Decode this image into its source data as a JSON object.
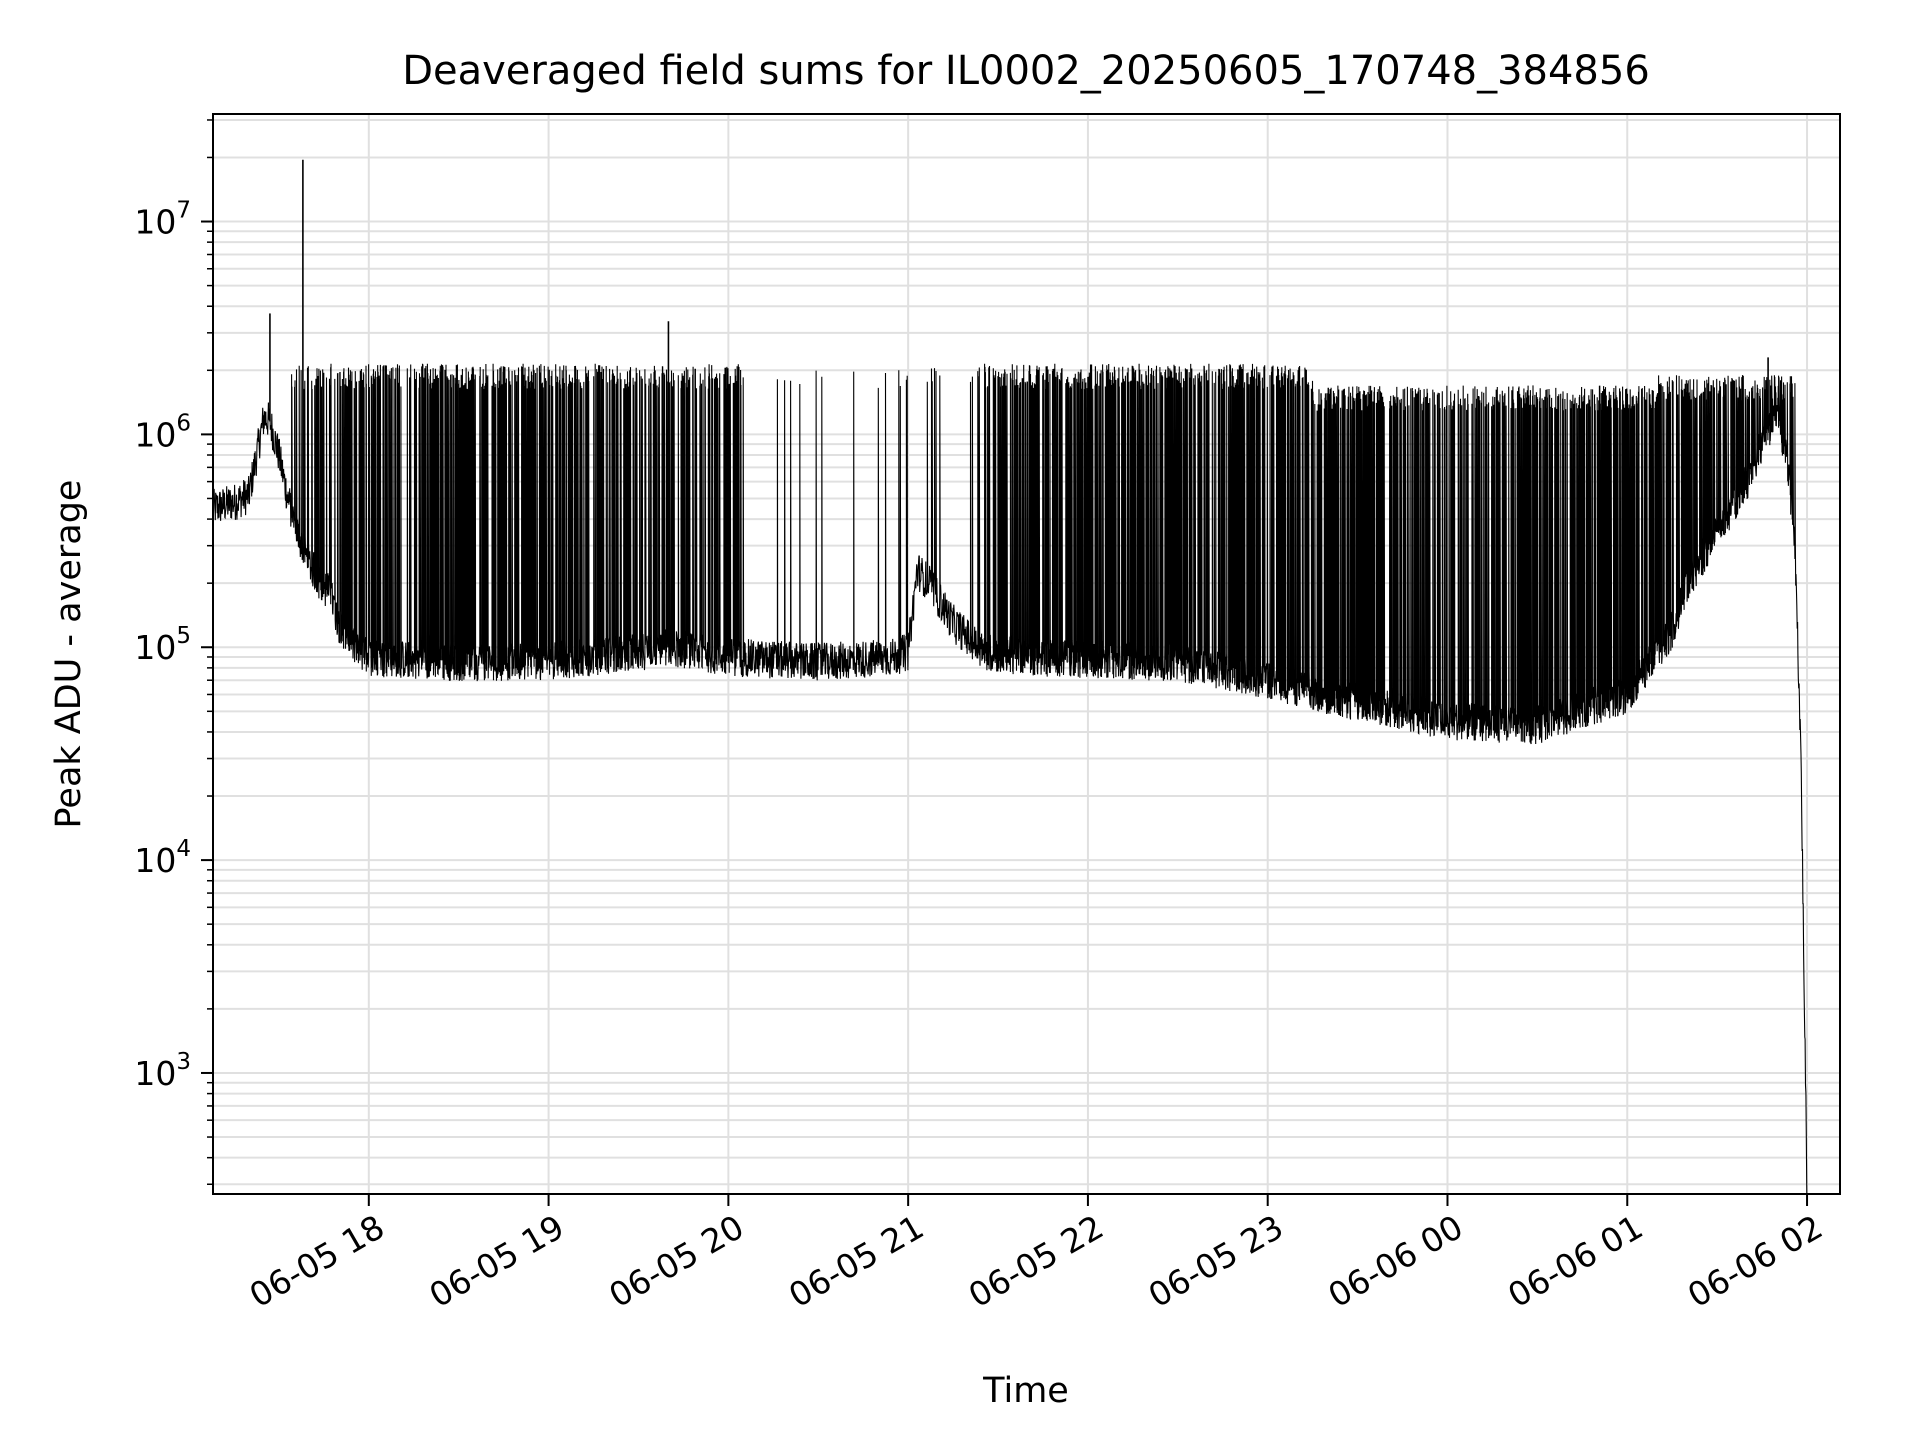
{
  "chart_data": {
    "type": "line",
    "title": "Deaveraged field sums for IL0002_20250605_170748_384856",
    "xlabel": "Time",
    "ylabel": "Peak ADU - average",
    "yscale": "log",
    "ylim": [
      270,
      32000000
    ],
    "xlim": [
      "2025-06-05 17:08",
      "2025-06-06 02:11"
    ],
    "x_ticks": [
      {
        "label": "06-05 18",
        "time": "2025-06-05 18:00"
      },
      {
        "label": "06-05 19",
        "time": "2025-06-05 19:00"
      },
      {
        "label": "06-05 20",
        "time": "2025-06-05 20:00"
      },
      {
        "label": "06-05 21",
        "time": "2025-06-05 21:00"
      },
      {
        "label": "06-05 22",
        "time": "2025-06-05 22:00"
      },
      {
        "label": "06-05 23",
        "time": "2025-06-05 23:00"
      },
      {
        "label": "06-06 00",
        "time": "2025-06-06 00:00"
      },
      {
        "label": "06-06 01",
        "time": "2025-06-06 01:00"
      },
      {
        "label": "06-06 02",
        "time": "2025-06-06 02:00"
      }
    ],
    "y_ticks": [
      {
        "base": "10",
        "exp": "3",
        "value": 1000
      },
      {
        "base": "10",
        "exp": "4",
        "value": 10000
      },
      {
        "base": "10",
        "exp": "5",
        "value": 100000
      },
      {
        "base": "10",
        "exp": "6",
        "value": 1000000
      },
      {
        "base": "10",
        "exp": "7",
        "value": 10000000
      }
    ],
    "grid": true,
    "line_color": "#000000",
    "grid_color": "#e0e0e0",
    "series": [
      {
        "x": [
          "2025-06-05 17:08",
          "2025-06-05 17:15",
          "2025-06-05 17:20",
          "2025-06-05 17:25",
          "2025-06-05 17:27",
          "2025-06-05 17:30",
          "2025-06-05 17:33",
          "2025-06-05 17:36",
          "2025-06-05 17:40",
          "2025-06-05 17:44",
          "2025-06-05 17:47",
          "2025-06-05 17:50",
          "2025-06-05 17:55",
          "2025-06-05 18:00",
          "2025-06-05 18:10",
          "2025-06-05 18:30",
          "2025-06-05 19:00",
          "2025-06-05 19:30",
          "2025-06-05 19:40",
          "2025-06-05 20:00",
          "2025-06-05 20:30",
          "2025-06-05 20:55",
          "2025-06-05 21:00",
          "2025-06-05 21:03",
          "2025-06-05 21:07",
          "2025-06-05 21:15",
          "2025-06-05 21:25",
          "2025-06-05 21:40",
          "2025-06-05 22:00",
          "2025-06-05 22:30",
          "2025-06-05 23:00",
          "2025-06-05 23:30",
          "2025-06-06 00:00",
          "2025-06-06 00:30",
          "2025-06-06 01:00",
          "2025-06-06 01:15",
          "2025-06-06 01:20",
          "2025-06-06 01:30",
          "2025-06-06 01:40",
          "2025-06-06 01:45",
          "2025-06-06 01:50",
          "2025-06-06 01:53",
          "2025-06-06 01:56",
          "2025-06-06 01:58",
          "2025-06-06 02:00"
        ],
        "y": [
          450000,
          480000,
          520000,
          1200000,
          1150000,
          800000,
          500000,
          350000,
          250000,
          200000,
          180000,
          130000,
          100000,
          90000,
          88000,
          85000,
          86000,
          95000,
          100000,
          90000,
          85000,
          90000,
          95000,
          230000,
          200000,
          130000,
          95000,
          90000,
          88000,
          85000,
          70000,
          55000,
          45000,
          43000,
          60000,
          120000,
          200000,
          350000,
          600000,
          900000,
          1300000,
          800000,
          300000,
          30000,
          270
        ]
      }
    ],
    "peaks": [
      {
        "x": "2025-06-05 17:27",
        "y": 3700000
      },
      {
        "x": "2025-06-05 17:38",
        "y": 19500000
      },
      {
        "x": "2025-06-05 19:40",
        "y": 3400000
      },
      {
        "x": "2025-06-06 01:47",
        "y": 2300000
      }
    ]
  }
}
